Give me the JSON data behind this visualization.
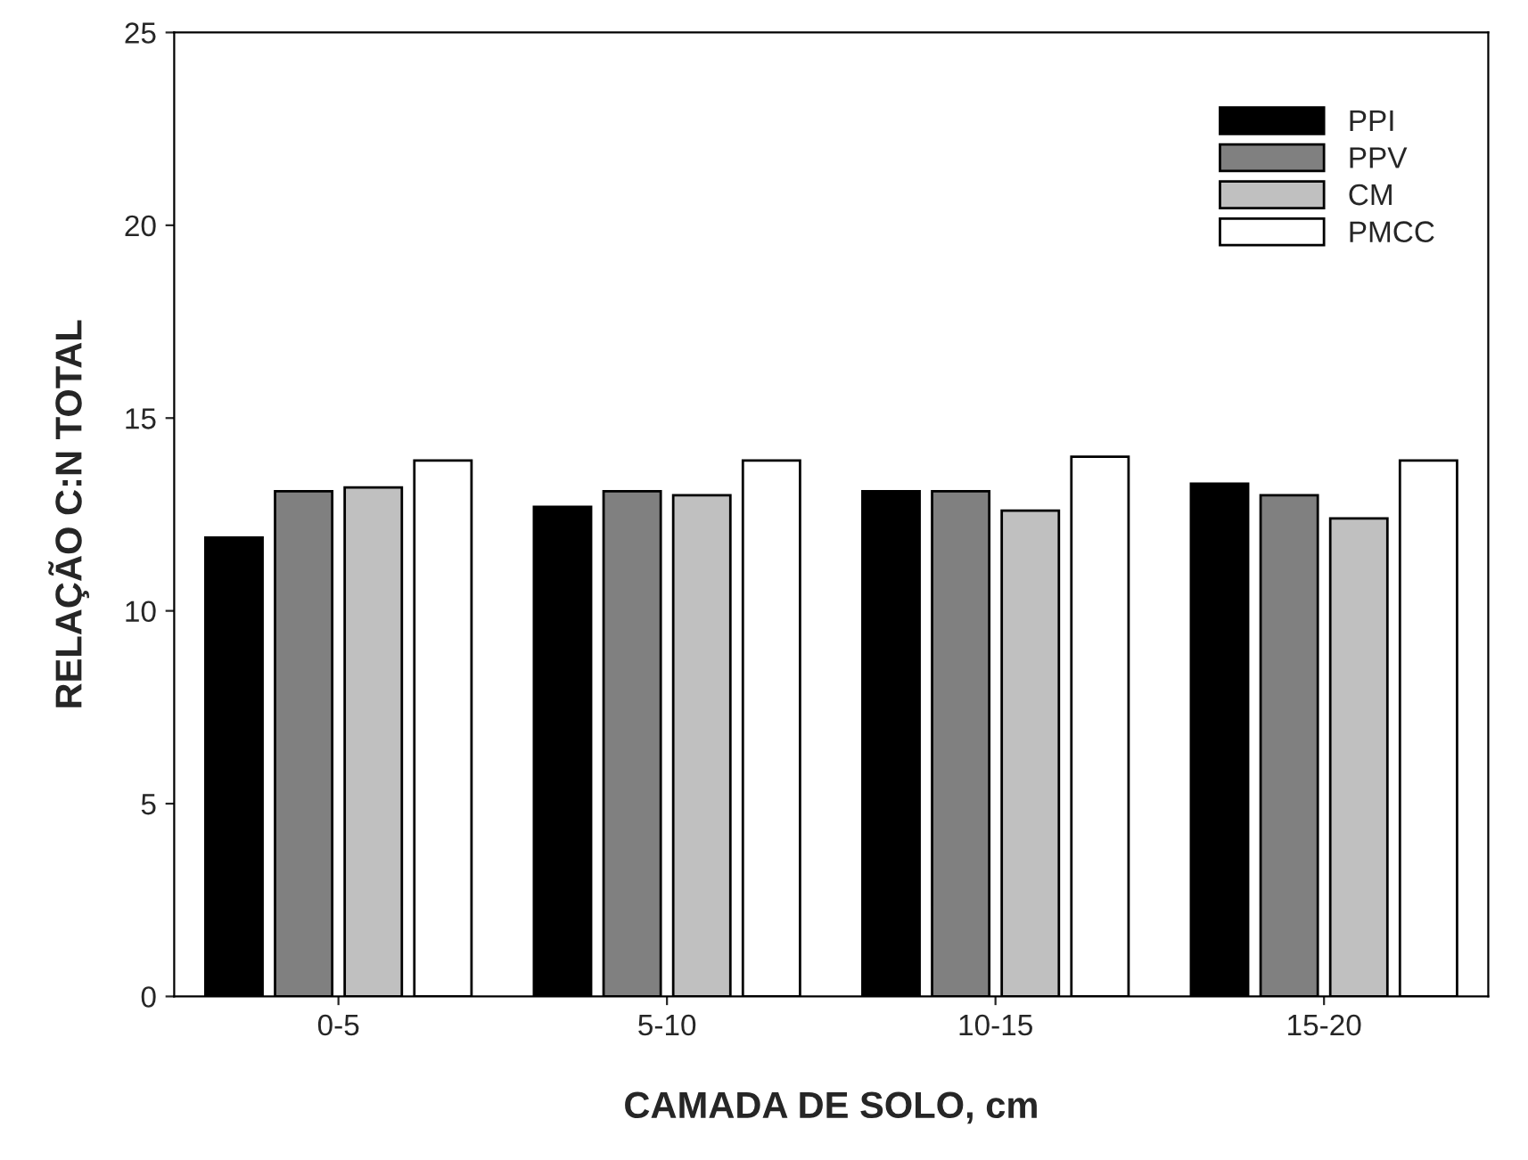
{
  "chart_data": {
    "type": "bar",
    "xlabel": "CAMADA DE SOLO, cm",
    "ylabel": "RELAÇÃO C:N TOTAL",
    "categories": [
      "0-5",
      "5-10",
      "10-15",
      "15-20"
    ],
    "series": [
      {
        "name": "PPI",
        "color": "#000000",
        "values": [
          11.9,
          12.7,
          13.1,
          13.3
        ]
      },
      {
        "name": "PPV",
        "color": "#808080",
        "values": [
          13.1,
          13.1,
          13.1,
          13.0
        ]
      },
      {
        "name": "CM",
        "color": "#c0c0c0",
        "values": [
          13.2,
          13.0,
          12.6,
          12.4
        ]
      },
      {
        "name": "PMCC",
        "color": "#ffffff",
        "values": [
          13.9,
          13.9,
          14.0,
          13.9
        ]
      }
    ],
    "ylim": [
      0,
      25
    ],
    "yticks": [
      0,
      5,
      10,
      15,
      20,
      25
    ],
    "grid": false,
    "legend": "top right"
  }
}
